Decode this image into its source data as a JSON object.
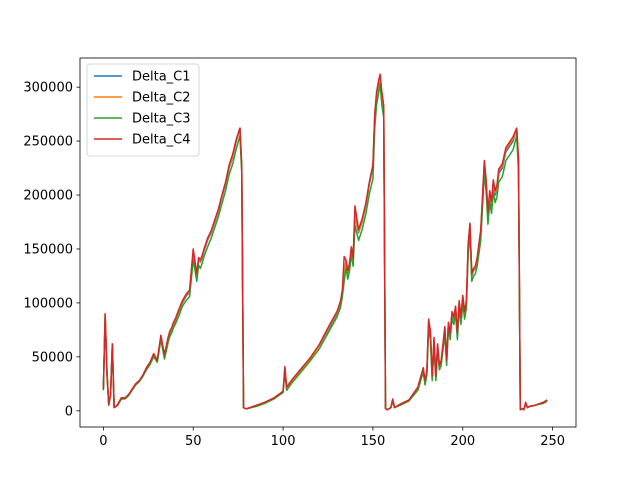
{
  "chart_data": {
    "type": "line",
    "title": "",
    "xlabel": "",
    "ylabel": "",
    "xlim": [
      -13,
      263
    ],
    "ylim": [
      -15000,
      327000
    ],
    "xticks": [
      0,
      50,
      100,
      150,
      200,
      250
    ],
    "yticks": [
      0,
      50000,
      100000,
      150000,
      200000,
      250000,
      300000
    ],
    "legend": "top-left",
    "grid": false,
    "series": [
      {
        "name": "Delta_C1",
        "color": "#1f77b4",
        "x": [
          0,
          1,
          2,
          3,
          4,
          5,
          6,
          7,
          8,
          9,
          10,
          12,
          14,
          16,
          18,
          20,
          22,
          24,
          26,
          28,
          30,
          32,
          34,
          36,
          37,
          38,
          39,
          40,
          42,
          44,
          46,
          48,
          50,
          52,
          53,
          54,
          55,
          56,
          58,
          60,
          62,
          64,
          66,
          68,
          70,
          72,
          74,
          76,
          77,
          78,
          79,
          80,
          85,
          90,
          95,
          100,
          101,
          102,
          105,
          110,
          115,
          120,
          125,
          130,
          132,
          133,
          134,
          135,
          136,
          137,
          138,
          139,
          140,
          142,
          144,
          146,
          148,
          150,
          151,
          152,
          153,
          154,
          155,
          156,
          157,
          158,
          159,
          160,
          161,
          162,
          165,
          170,
          175,
          178,
          179,
          180,
          181,
          182,
          183,
          184,
          185,
          186,
          187,
          188,
          189,
          190,
          191,
          192,
          193,
          194,
          195,
          196,
          197,
          198,
          199,
          200,
          201,
          202,
          203,
          204,
          205,
          206,
          207,
          208,
          210,
          212,
          213,
          214,
          215,
          216,
          217,
          218,
          219,
          220,
          222,
          224,
          226,
          228,
          230,
          231,
          232,
          233,
          234,
          235,
          236,
          237,
          240,
          245,
          247
        ],
        "y": [
          20000,
          88000,
          35000,
          6000,
          15000,
          60000,
          3000,
          4000,
          6000,
          9000,
          12000,
          12000,
          15000,
          20000,
          25000,
          28000,
          33000,
          40000,
          45000,
          52000,
          46000,
          68000,
          50000,
          66000,
          72000,
          75000,
          80000,
          83000,
          92000,
          100000,
          106000,
          110000,
          146000,
          125000,
          140000,
          138000,
          142000,
          148000,
          158000,
          165000,
          175000,
          185000,
          198000,
          210000,
          225000,
          235000,
          250000,
          262000,
          225000,
          3000,
          2000,
          2000,
          5000,
          8000,
          12000,
          18000,
          38000,
          20000,
          28000,
          38000,
          48000,
          60000,
          75000,
          90000,
          100000,
          110000,
          125000,
          138000,
          128000,
          135000,
          150000,
          140000,
          180000,
          165000,
          175000,
          190000,
          210000,
          225000,
          270000,
          290000,
          300000,
          310000,
          290000,
          280000,
          2000,
          1000,
          2000,
          3000,
          10000,
          3000,
          6000,
          10000,
          20000,
          38000,
          26000,
          35000,
          80000,
          70000,
          30000,
          65000,
          30000,
          60000,
          40000,
          45000,
          60000,
          75000,
          45000,
          80000,
          70000,
          90000,
          85000,
          95000,
          70000,
          100000,
          85000,
          105000,
          90000,
          100000,
          150000,
          170000,
          125000,
          130000,
          132000,
          140000,
          165000,
          228000,
          210000,
          180000,
          200000,
          190000,
          210000,
          200000,
          205000,
          220000,
          225000,
          240000,
          245000,
          250000,
          262000,
          230000,
          1000,
          2000,
          1000,
          7000,
          3000,
          4000,
          5000,
          8000,
          10000
        ]
      },
      {
        "name": "Delta_C2",
        "color": "#ff7f0e",
        "x": [
          0,
          1,
          2,
          3,
          4,
          5,
          6,
          7,
          8,
          9,
          10,
          12,
          14,
          16,
          18,
          20,
          22,
          24,
          26,
          28,
          30,
          32,
          34,
          36,
          37,
          38,
          39,
          40,
          42,
          44,
          46,
          48,
          50,
          52,
          53,
          54,
          55,
          56,
          58,
          60,
          62,
          64,
          66,
          68,
          70,
          72,
          74,
          76,
          77,
          78,
          79,
          80,
          85,
          90,
          95,
          100,
          101,
          102,
          105,
          110,
          115,
          120,
          125,
          130,
          132,
          133,
          134,
          135,
          136,
          137,
          138,
          139,
          140,
          142,
          144,
          146,
          148,
          150,
          151,
          152,
          153,
          154,
          155,
          156,
          157,
          158,
          159,
          160,
          161,
          162,
          165,
          170,
          175,
          178,
          179,
          180,
          181,
          182,
          183,
          184,
          185,
          186,
          187,
          188,
          189,
          190,
          191,
          192,
          193,
          194,
          195,
          196,
          197,
          198,
          199,
          200,
          201,
          202,
          203,
          204,
          205,
          206,
          207,
          208,
          210,
          212,
          213,
          214,
          215,
          216,
          217,
          218,
          219,
          220,
          222,
          224,
          226,
          228,
          230,
          231,
          232,
          233,
          234,
          235,
          236,
          237,
          240,
          245,
          247
        ],
        "y": [
          20000,
          89000,
          36000,
          6000,
          15000,
          61000,
          3000,
          4000,
          6000,
          9000,
          12000,
          12000,
          15000,
          20000,
          25000,
          28000,
          33000,
          40000,
          45000,
          53000,
          47000,
          69000,
          51000,
          67000,
          73000,
          76000,
          81000,
          84000,
          93000,
          101000,
          107000,
          111000,
          147000,
          126000,
          141000,
          139000,
          143000,
          149000,
          159000,
          166000,
          176000,
          186000,
          199000,
          211000,
          226000,
          236000,
          251000,
          262000,
          226000,
          3000,
          2000,
          2000,
          5000,
          8000,
          12000,
          18000,
          39000,
          21000,
          28000,
          38000,
          48000,
          60000,
          76000,
          91000,
          101000,
          111000,
          126000,
          139000,
          129000,
          136000,
          151000,
          141000,
          181000,
          166000,
          176000,
          191000,
          211000,
          226000,
          272000,
          292000,
          302000,
          311000,
          292000,
          281000,
          2000,
          1000,
          2000,
          3000,
          10000,
          3000,
          6000,
          10000,
          21000,
          39000,
          27000,
          36000,
          82000,
          72000,
          31000,
          66000,
          31000,
          61000,
          41000,
          46000,
          61000,
          76000,
          46000,
          81000,
          71000,
          91000,
          86000,
          96000,
          71000,
          101000,
          86000,
          106000,
          91000,
          101000,
          152000,
          172000,
          126000,
          131000,
          133000,
          141000,
          166000,
          230000,
          212000,
          182000,
          202000,
          192000,
          212000,
          202000,
          207000,
          222000,
          227000,
          242000,
          247000,
          252000,
          262000,
          232000,
          1000,
          2000,
          1000,
          7000,
          3000,
          4000,
          5000,
          8000,
          10000
        ]
      },
      {
        "name": "Delta_C3",
        "color": "#2ca02c",
        "x": [
          0,
          1,
          2,
          3,
          4,
          5,
          6,
          7,
          8,
          9,
          10,
          12,
          14,
          16,
          18,
          20,
          22,
          24,
          26,
          28,
          30,
          32,
          34,
          36,
          37,
          38,
          39,
          40,
          42,
          44,
          46,
          48,
          50,
          52,
          53,
          54,
          55,
          56,
          58,
          60,
          62,
          64,
          66,
          68,
          70,
          72,
          74,
          76,
          77,
          78,
          79,
          80,
          85,
          90,
          95,
          100,
          101,
          102,
          105,
          110,
          115,
          120,
          125,
          130,
          132,
          133,
          134,
          135,
          136,
          137,
          138,
          139,
          140,
          142,
          144,
          146,
          148,
          150,
          151,
          152,
          153,
          154,
          155,
          156,
          157,
          158,
          159,
          160,
          161,
          162,
          165,
          170,
          175,
          178,
          179,
          180,
          181,
          182,
          183,
          184,
          185,
          186,
          187,
          188,
          189,
          190,
          191,
          192,
          193,
          194,
          195,
          196,
          197,
          198,
          199,
          200,
          201,
          202,
          203,
          204,
          205,
          206,
          207,
          208,
          210,
          212,
          213,
          214,
          215,
          216,
          217,
          218,
          219,
          220,
          222,
          224,
          226,
          228,
          230,
          231,
          232,
          233,
          234,
          235,
          236,
          237,
          240,
          245,
          247
        ],
        "y": [
          19000,
          86000,
          34000,
          5000,
          14000,
          62000,
          3000,
          4000,
          5000,
          8000,
          11000,
          11000,
          14000,
          19000,
          24000,
          27000,
          32000,
          38000,
          43000,
          50000,
          45000,
          66000,
          48000,
          63000,
          69000,
          72000,
          77000,
          80000,
          88000,
          97000,
          102000,
          106000,
          140000,
          120000,
          135000,
          132000,
          137000,
          143000,
          152000,
          160000,
          170000,
          180000,
          192000,
          204000,
          219000,
          229000,
          243000,
          255000,
          220000,
          3000,
          2000,
          2000,
          4000,
          7000,
          11000,
          17000,
          36000,
          19000,
          26000,
          36000,
          46000,
          57000,
          72000,
          87000,
          96000,
          106000,
          120000,
          132000,
          122000,
          130000,
          145000,
          134000,
          172000,
          158000,
          168000,
          182000,
          201000,
          215000,
          262000,
          283000,
          293000,
          303000,
          283000,
          272000,
          2000,
          1000,
          2000,
          3000,
          9000,
          3000,
          5000,
          9000,
          19000,
          36000,
          24000,
          33000,
          76000,
          66000,
          28000,
          62000,
          28000,
          57000,
          38000,
          42000,
          57000,
          71000,
          42000,
          76000,
          66000,
          86000,
          80000,
          90000,
          66000,
          95000,
          80000,
          100000,
          85000,
          95000,
          145000,
          165000,
          120000,
          125000,
          127000,
          134000,
          158000,
          220000,
          203000,
          173000,
          193000,
          183000,
          203000,
          193000,
          198000,
          212000,
          217000,
          232000,
          237000,
          242000,
          255000,
          222000,
          1000,
          2000,
          1000,
          6000,
          3000,
          4000,
          5000,
          7000,
          9000
        ]
      },
      {
        "name": "Delta_C4",
        "color": "#d62728",
        "x": [
          0,
          1,
          2,
          3,
          4,
          5,
          6,
          7,
          8,
          9,
          10,
          12,
          14,
          16,
          18,
          20,
          22,
          24,
          26,
          28,
          30,
          32,
          34,
          36,
          37,
          38,
          39,
          40,
          42,
          44,
          46,
          48,
          50,
          52,
          53,
          54,
          55,
          56,
          58,
          60,
          62,
          64,
          66,
          68,
          70,
          72,
          74,
          76,
          77,
          78,
          79,
          80,
          85,
          90,
          95,
          100,
          101,
          102,
          105,
          110,
          115,
          120,
          125,
          130,
          132,
          133,
          134,
          135,
          136,
          137,
          138,
          139,
          140,
          142,
          144,
          146,
          148,
          150,
          151,
          152,
          153,
          154,
          155,
          156,
          157,
          158,
          159,
          160,
          161,
          162,
          165,
          170,
          175,
          178,
          179,
          180,
          181,
          182,
          183,
          184,
          185,
          186,
          187,
          188,
          189,
          190,
          191,
          192,
          193,
          194,
          195,
          196,
          197,
          198,
          199,
          200,
          201,
          202,
          203,
          204,
          205,
          206,
          207,
          208,
          210,
          212,
          213,
          214,
          215,
          216,
          217,
          218,
          219,
          220,
          222,
          224,
          226,
          228,
          230,
          231,
          232,
          233,
          234,
          235,
          236,
          237,
          240,
          245,
          247
        ],
        "y": [
          20000,
          90000,
          36000,
          6000,
          15000,
          62000,
          3000,
          4000,
          6000,
          9000,
          12000,
          12000,
          15000,
          20000,
          25000,
          28000,
          33000,
          40000,
          45000,
          53000,
          47000,
          70000,
          52000,
          68000,
          74000,
          77000,
          82000,
          85000,
          94000,
          102000,
          108000,
          112000,
          150000,
          127000,
          142000,
          140000,
          144000,
          150000,
          160000,
          167000,
          177000,
          187000,
          200000,
          212000,
          228000,
          238000,
          252000,
          262000,
          228000,
          3000,
          2000,
          2000,
          5000,
          8000,
          12000,
          18000,
          41000,
          22000,
          29000,
          39000,
          49000,
          61000,
          77000,
          92000,
          102000,
          112000,
          143000,
          140000,
          130000,
          137000,
          152000,
          142000,
          190000,
          168000,
          178000,
          192000,
          212000,
          228000,
          275000,
          295000,
          305000,
          312000,
          295000,
          283000,
          2000,
          1000,
          2000,
          3000,
          11000,
          3000,
          6000,
          10000,
          22000,
          40000,
          28000,
          37000,
          85000,
          74000,
          32000,
          68000,
          32000,
          62000,
          42000,
          47000,
          62000,
          78000,
          47000,
          82000,
          72000,
          92000,
          87000,
          97000,
          72000,
          102000,
          87000,
          107000,
          92000,
          102000,
          155000,
          174000,
          127000,
          132000,
          134000,
          142000,
          168000,
          232000,
          214000,
          184000,
          204000,
          194000,
          214000,
          204000,
          209000,
          224000,
          229000,
          244000,
          249000,
          254000,
          262000,
          234000,
          1000,
          2000,
          1000,
          8000,
          3000,
          4000,
          5000,
          8000,
          10000
        ]
      }
    ]
  }
}
